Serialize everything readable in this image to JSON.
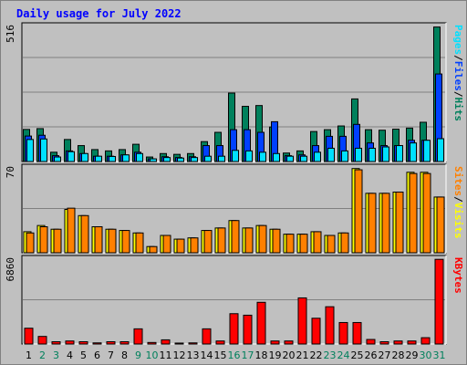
{
  "title": "Daily usage for July 2022",
  "colors": {
    "hits": "#00805c",
    "files": "#0040ff",
    "pages": "#00e0ff",
    "visits": "#ffff00",
    "sites": "#ff8000",
    "kbytes": "#ff0000",
    "weekend": "#00805c",
    "weekday": "#000000",
    "sep": "#000000"
  },
  "chart_data": [
    {
      "type": "bar",
      "panel": "top",
      "ymax_label": "516",
      "ymax": 516,
      "categories": [
        "1",
        "2",
        "3",
        "4",
        "5",
        "6",
        "7",
        "8",
        "9",
        "10",
        "11",
        "12",
        "13",
        "14",
        "15",
        "16",
        "17",
        "18",
        "19",
        "20",
        "21",
        "22",
        "23",
        "24",
        "25",
        "26",
        "27",
        "28",
        "29",
        "30",
        "31"
      ],
      "weekend_days": [
        2,
        3,
        9,
        10,
        16,
        17,
        23,
        24,
        30,
        31
      ],
      "series": [
        {
          "name": "Hits",
          "key": "hits",
          "values": [
            121,
            124,
            35,
            83,
            60,
            45,
            40,
            45,
            65,
            17,
            30,
            27,
            30,
            75,
            110,
            258,
            208,
            211,
            130,
            32,
            40,
            113,
            120,
            134,
            236,
            120,
            118,
            122,
            126,
            148,
            507
          ]
        },
        {
          "name": "Files",
          "key": "files",
          "values": [
            96,
            99,
            22,
            40,
            30,
            20,
            20,
            25,
            35,
            10,
            18,
            15,
            18,
            60,
            60,
            120,
            120,
            110,
            150,
            22,
            25,
            60,
            95,
            95,
            140,
            70,
            60,
            60,
            80,
            80,
            330
          ]
        },
        {
          "name": "Pages",
          "key": "pages",
          "values": [
            83,
            85,
            17,
            37,
            30,
            20,
            19,
            25,
            30,
            10,
            15,
            13,
            15,
            20,
            20,
            42,
            40,
            35,
            30,
            20,
            20,
            35,
            50,
            40,
            50,
            50,
            55,
            60,
            70,
            80,
            86
          ]
        }
      ],
      "legend": [
        "Pages",
        "Files",
        "Hits"
      ]
    },
    {
      "type": "bar",
      "panel": "middle",
      "ymax_label": "70",
      "ymax": 70,
      "categories": [
        "1",
        "2",
        "3",
        "4",
        "5",
        "6",
        "7",
        "8",
        "9",
        "10",
        "11",
        "12",
        "13",
        "14",
        "15",
        "16",
        "17",
        "18",
        "19",
        "20",
        "21",
        "22",
        "23",
        "24",
        "25",
        "26",
        "27",
        "28",
        "29",
        "30",
        "31"
      ],
      "series": [
        {
          "name": "Visits",
          "key": "visits",
          "values": [
            17,
            22,
            19,
            35,
            30,
            21,
            19,
            18,
            16,
            5,
            14,
            11,
            12,
            18,
            20,
            26,
            20,
            22,
            19,
            15,
            15,
            17,
            14,
            16,
            68,
            48,
            48,
            49,
            65,
            65,
            45
          ]
        },
        {
          "name": "Sites",
          "key": "sites",
          "values": [
            16,
            21,
            19,
            36,
            30,
            21,
            19,
            18,
            16,
            5,
            14,
            11,
            12,
            18,
            20,
            26,
            20,
            22,
            19,
            15,
            15,
            17,
            14,
            16,
            67,
            48,
            48,
            49,
            64,
            64,
            45
          ]
        }
      ],
      "legend": [
        "Sites",
        "Visits"
      ]
    },
    {
      "type": "bar",
      "panel": "bottom",
      "ymax_label": "6860",
      "ymax": 6860,
      "categories": [
        "1",
        "2",
        "3",
        "4",
        "5",
        "6",
        "7",
        "8",
        "9",
        "10",
        "11",
        "12",
        "13",
        "14",
        "15",
        "16",
        "17",
        "18",
        "19",
        "20",
        "21",
        "22",
        "23",
        "24",
        "25",
        "26",
        "27",
        "28",
        "29",
        "30",
        "31"
      ],
      "series": [
        {
          "name": "KBytes",
          "key": "kbytes",
          "values": [
            1250,
            600,
            180,
            240,
            180,
            90,
            180,
            180,
            1200,
            120,
            330,
            75,
            90,
            1200,
            240,
            2400,
            2280,
            3300,
            240,
            240,
            3650,
            2040,
            2950,
            1700,
            1700,
            360,
            180,
            240,
            240,
            500,
            6700
          ]
        }
      ],
      "legend": [
        "KBytes"
      ]
    }
  ]
}
